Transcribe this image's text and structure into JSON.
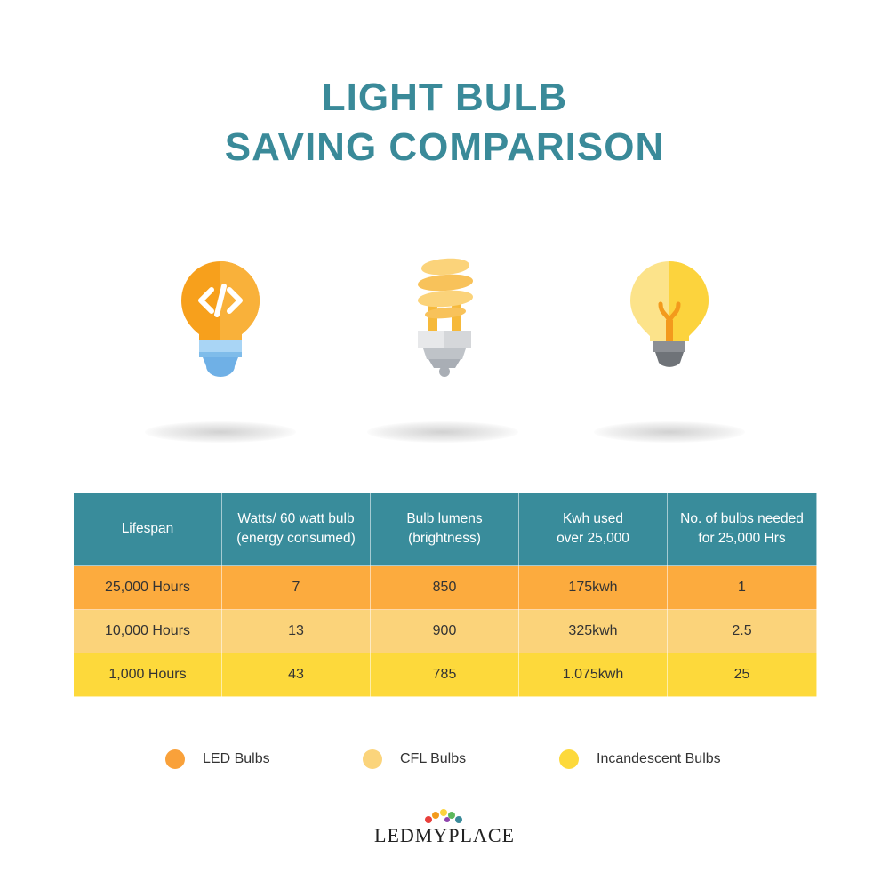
{
  "title": {
    "line1": "LIGHT BULB",
    "line2": "SAVING COMPARISON"
  },
  "bulbs": [
    {
      "icon": "led-bulb-icon",
      "color": "#f7a01c"
    },
    {
      "icon": "cfl-bulb-icon",
      "color": "#f6c85c"
    },
    {
      "icon": "incandescent-bulb-icon",
      "color": "#fcd33d"
    }
  ],
  "table": {
    "headers": [
      [
        "Lifespan"
      ],
      [
        "Watts/ 60 watt bulb",
        "(energy consumed)"
      ],
      [
        "Bulb lumens",
        "(brightness)"
      ],
      [
        "Kwh used",
        "over 25,000"
      ],
      [
        "No. of bulbs needed",
        "for 25,000 Hrs"
      ]
    ],
    "rows": [
      [
        "25,000 Hours",
        "7",
        "850",
        "175kwh",
        "1"
      ],
      [
        "10,000 Hours",
        "13",
        "900",
        "325kwh",
        "2.5"
      ],
      [
        "1,000 Hours",
        "43",
        "785",
        "1.075kwh",
        "25"
      ]
    ]
  },
  "legend": [
    {
      "label": "LED Bulbs",
      "color": "#f9a13a"
    },
    {
      "label": "CFL Bulbs",
      "color": "#fbd47b"
    },
    {
      "label": "Incandescent Bulbs",
      "color": "#fdd93b"
    }
  ],
  "colors": {
    "accent": "#3a8a99",
    "header_bg": "#398c9b"
  },
  "logo": {
    "text": "LEDMYPLACE"
  }
}
